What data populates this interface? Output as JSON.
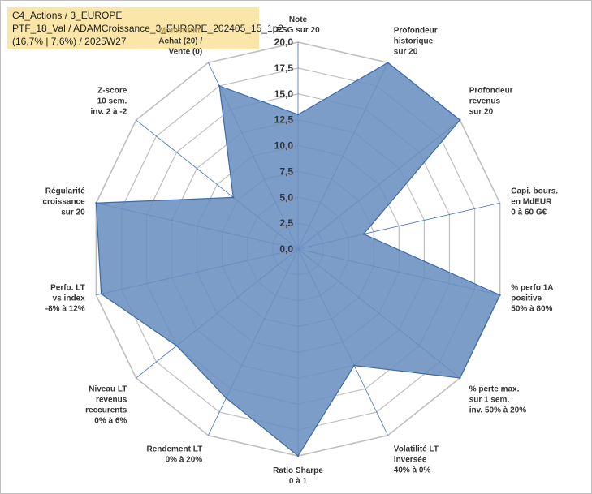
{
  "header": {
    "line1": "C4_Actions / 3_EUROPE",
    "line2": "PTF_18_Val / ADAMCroissance_3_EUROPE_202405_15_1p2",
    "line3": "(16,7% | 7,6%) / 2025W27"
  },
  "chart_data": {
    "type": "radar",
    "rmin": 0,
    "rmax": 20,
    "ticks": [
      "0,0",
      "2,5",
      "5,0",
      "7,5",
      "10,0",
      "12,5",
      "15,0",
      "17,5",
      "20,0"
    ],
    "tick_values": [
      0,
      2.5,
      5,
      7.5,
      10,
      12.5,
      15,
      17.5,
      20
    ],
    "grid": true,
    "fill_color": "#6a8fc0",
    "line_color": "#3f6ba6",
    "grid_color": "#bfbfbf",
    "spoke_color": "#4472c4",
    "highlight_color": "#b19a4e",
    "axes": [
      {
        "lines": [
          "Note",
          "ESG sur 20"
        ],
        "value": 13
      },
      {
        "lines": [
          "Profondeur",
          "historique",
          "sur 20"
        ],
        "value": 20
      },
      {
        "lines": [
          "Profondeur",
          "revenus",
          "sur 20"
        ],
        "value": 20
      },
      {
        "lines": [
          "Capi. bours.",
          "en MdEUR",
          "0 à 60 G€"
        ],
        "value": 6.5
      },
      {
        "lines": [
          "% perfo 1A",
          "positive",
          "50% à 80%"
        ],
        "value": 20
      },
      {
        "lines": [
          "% perte max.",
          "sur 1 sem.",
          "inv. 50% à 20%"
        ],
        "value": 20
      },
      {
        "lines": [
          "Volatilité LT",
          "inversée",
          "40% à 0%"
        ],
        "value": 12.5
      },
      {
        "lines": [
          "Ratio Sharpe",
          "0 à 1"
        ],
        "value": 20
      },
      {
        "lines": [
          "Rendement LT",
          "0% à 20%"
        ],
        "value": 16
      },
      {
        "lines": [
          "Niveau LT",
          "revenus",
          "reccurents",
          "0% à 6%"
        ],
        "value": 15
      },
      {
        "lines": [
          "Perfo. LT",
          "vs index",
          "-8% à 12%"
        ],
        "value": 19.5
      },
      {
        "lines": [
          "Régularité",
          "croissance",
          "sur 20"
        ],
        "value": 20
      },
      {
        "lines": [
          "Z-score",
          "10 sem.",
          "inv. 2 à -2"
        ],
        "value": 8
      },
      {
        "lines": [
          "Momentum",
          "Achat (20) /",
          "Vente (0)"
        ],
        "highlight_line": 0,
        "value": 17.5
      }
    ]
  }
}
